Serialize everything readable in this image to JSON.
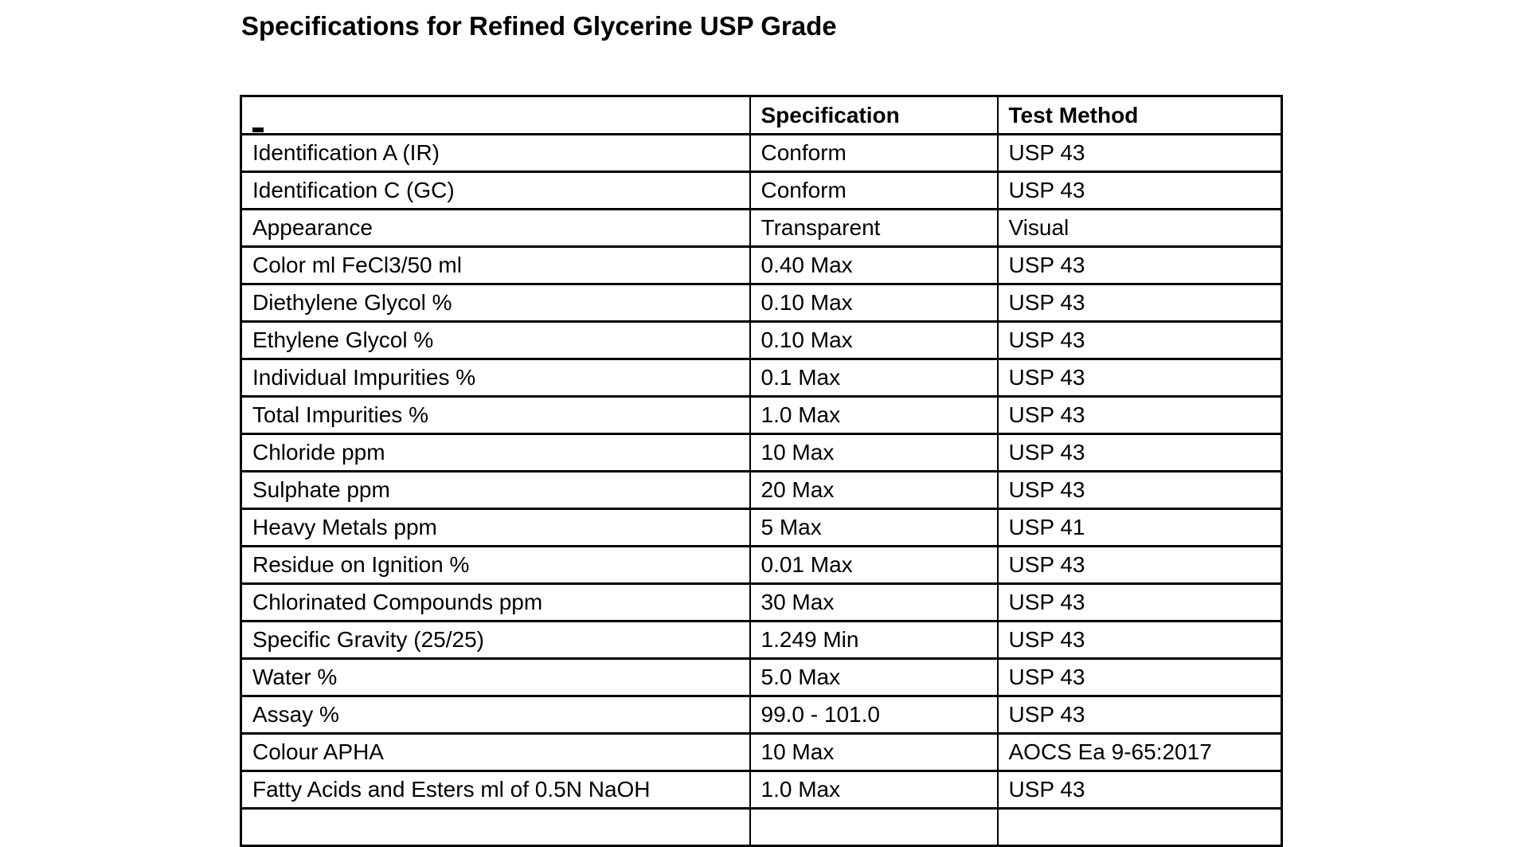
{
  "document": {
    "title": "Specifications for Refined Glycerine USP Grade"
  },
  "colors": {
    "text": "#000000",
    "border": "#000000",
    "background": "#ffffff"
  },
  "table": {
    "headers": {
      "parameter": "",
      "specification": "Specification",
      "test_method": "Test Method"
    },
    "corner_mark_icon": "underscore-mark",
    "rows": [
      {
        "parameter": "Identification A (IR)",
        "specification": "Conform",
        "test_method": "USP 43"
      },
      {
        "parameter": "Identification C (GC)",
        "specification": "Conform",
        "test_method": "USP 43"
      },
      {
        "parameter": "Appearance",
        "specification": "Transparent",
        "test_method": "Visual"
      },
      {
        "parameter": "Color ml FeCl3/50 ml",
        "specification": "0.40 Max",
        "test_method": "USP 43"
      },
      {
        "parameter": "Diethylene Glycol %",
        "specification": "0.10 Max",
        "test_method": "USP 43"
      },
      {
        "parameter": "Ethylene Glycol %",
        "specification": "0.10 Max",
        "test_method": "USP 43"
      },
      {
        "parameter": "Individual Impurities %",
        "specification": "0.1 Max",
        "test_method": "USP 43"
      },
      {
        "parameter": "Total Impurities %",
        "specification": "1.0 Max",
        "test_method": "USP 43"
      },
      {
        "parameter": "Chloride ppm",
        "specification": "10 Max",
        "test_method": "USP 43"
      },
      {
        "parameter": "Sulphate ppm",
        "specification": "20 Max",
        "test_method": "USP 43"
      },
      {
        "parameter": "Heavy Metals ppm",
        "specification": "5 Max",
        "test_method": "USP 41"
      },
      {
        "parameter": "Residue on Ignition %",
        "specification": "0.01 Max",
        "test_method": "USP 43"
      },
      {
        "parameter": "Chlorinated Compounds ppm",
        "specification": "30 Max",
        "test_method": "USP 43"
      },
      {
        "parameter": "Specific Gravity (25/25)",
        "specification": "1.249 Min",
        "test_method": "USP 43"
      },
      {
        "parameter": "Water %",
        "specification": "5.0 Max",
        "test_method": "USP 43"
      },
      {
        "parameter": "Assay %",
        "specification": "99.0 - 101.0",
        "test_method": "USP 43"
      },
      {
        "parameter": "Colour APHA",
        "specification": "10 Max",
        "test_method": "AOCS Ea 9-65:2017"
      },
      {
        "parameter": "Fatty Acids and Esters ml of 0.5N NaOH",
        "specification": "1.0 Max",
        "test_method": "USP 43"
      }
    ],
    "trailing_empty_row": true
  }
}
